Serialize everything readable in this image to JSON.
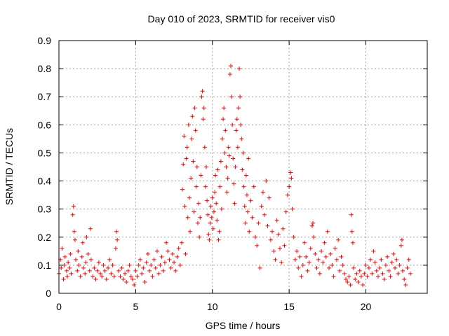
{
  "chart_data": {
    "type": "scatter",
    "title": "Day 010 of 2023, SRMTID for receiver vis0",
    "xlabel": "GPS time / hours",
    "ylabel": "SRMTID / TECUs",
    "xlim": [
      0,
      24
    ],
    "ylim": [
      0,
      0.9
    ],
    "xticks": [
      0,
      5,
      10,
      15,
      20
    ],
    "yticks": [
      0,
      0.1,
      0.2,
      0.3,
      0.4,
      0.5,
      0.6,
      0.7,
      0.8,
      0.9
    ],
    "xtick_labels": [
      "0",
      "5",
      "10",
      "15",
      "20"
    ],
    "ytick_labels": [
      "0",
      "0.1",
      "0.2",
      "0.3",
      "0.4",
      "0.5",
      "0.6",
      "0.7",
      "0.8",
      "0.9"
    ],
    "grid": true,
    "marker": "+",
    "color": "#ff0000",
    "series": [
      {
        "name": "vis0",
        "points": [
          [
            0.0,
            0.07
          ],
          [
            0.1,
            0.12
          ],
          [
            0.15,
            0.09
          ],
          [
            0.2,
            0.16
          ],
          [
            0.3,
            0.05
          ],
          [
            0.35,
            0.1
          ],
          [
            0.4,
            0.13
          ],
          [
            0.5,
            0.08
          ],
          [
            0.55,
            0.06
          ],
          [
            0.6,
            0.11
          ],
          [
            0.7,
            0.09
          ],
          [
            0.75,
            0.14
          ],
          [
            0.8,
            0.07
          ],
          [
            0.9,
            0.28
          ],
          [
            0.95,
            0.31
          ],
          [
            1.0,
            0.22
          ],
          [
            1.05,
            0.19
          ],
          [
            1.1,
            0.12
          ],
          [
            1.2,
            0.08
          ],
          [
            1.25,
            0.15
          ],
          [
            1.3,
            0.1
          ],
          [
            1.4,
            0.06
          ],
          [
            1.5,
            0.13
          ],
          [
            1.55,
            0.18
          ],
          [
            1.6,
            0.09
          ],
          [
            1.7,
            0.07
          ],
          [
            1.75,
            0.11
          ],
          [
            1.8,
            0.2
          ],
          [
            1.9,
            0.14
          ],
          [
            2.0,
            0.08
          ],
          [
            2.05,
            0.23
          ],
          [
            2.1,
            0.12
          ],
          [
            2.2,
            0.06
          ],
          [
            2.3,
            0.09
          ],
          [
            2.4,
            0.05
          ],
          [
            2.5,
            0.08
          ],
          [
            2.6,
            0.11
          ],
          [
            2.7,
            0.07
          ],
          [
            2.8,
            0.06
          ],
          [
            2.9,
            0.1
          ],
          [
            3.0,
            0.08
          ],
          [
            3.1,
            0.05
          ],
          [
            3.2,
            0.09
          ],
          [
            3.3,
            0.12
          ],
          [
            3.4,
            0.07
          ],
          [
            3.5,
            0.1
          ],
          [
            3.6,
            0.06
          ],
          [
            3.7,
            0.16
          ],
          [
            3.75,
            0.22
          ],
          [
            3.8,
            0.19
          ],
          [
            3.9,
            0.08
          ],
          [
            4.0,
            0.06
          ],
          [
            4.1,
            0.09
          ],
          [
            4.2,
            0.05
          ],
          [
            4.3,
            0.07
          ],
          [
            4.4,
            0.04
          ],
          [
            4.5,
            0.08
          ],
          [
            4.6,
            0.1
          ],
          [
            4.7,
            0.06
          ],
          [
            4.8,
            0.05
          ],
          [
            4.9,
            0.03
          ],
          [
            5.0,
            0.08
          ],
          [
            5.1,
            0.06
          ],
          [
            5.2,
            0.1
          ],
          [
            5.3,
            0.12
          ],
          [
            5.4,
            0.07
          ],
          [
            5.5,
            0.09
          ],
          [
            5.6,
            0.04
          ],
          [
            5.7,
            0.11
          ],
          [
            5.8,
            0.14
          ],
          [
            5.9,
            0.08
          ],
          [
            6.0,
            0.1
          ],
          [
            6.1,
            0.06
          ],
          [
            6.2,
            0.12
          ],
          [
            6.3,
            0.09
          ],
          [
            6.4,
            0.15
          ],
          [
            6.5,
            0.07
          ],
          [
            6.6,
            0.1
          ],
          [
            6.7,
            0.13
          ],
          [
            6.8,
            0.08
          ],
          [
            6.9,
            0.11
          ],
          [
            7.0,
            0.18
          ],
          [
            7.1,
            0.15
          ],
          [
            7.2,
            0.12
          ],
          [
            7.3,
            0.09
          ],
          [
            7.4,
            0.14
          ],
          [
            7.5,
            0.11
          ],
          [
            7.6,
            0.08
          ],
          [
            7.7,
            0.13
          ],
          [
            7.8,
            0.16
          ],
          [
            7.9,
            0.1
          ],
          [
            8.0,
            0.18
          ],
          [
            8.05,
            0.37
          ],
          [
            8.1,
            0.46
          ],
          [
            8.15,
            0.56
          ],
          [
            8.2,
            0.31
          ],
          [
            8.25,
            0.14
          ],
          [
            8.3,
            0.48
          ],
          [
            8.35,
            0.52
          ],
          [
            8.4,
            0.27
          ],
          [
            8.45,
            0.6
          ],
          [
            8.5,
            0.34
          ],
          [
            8.55,
            0.22
          ],
          [
            8.6,
            0.41
          ],
          [
            8.65,
            0.55
          ],
          [
            8.7,
            0.63
          ],
          [
            8.75,
            0.47
          ],
          [
            8.8,
            0.29
          ],
          [
            8.85,
            0.66
          ],
          [
            8.9,
            0.58
          ],
          [
            8.95,
            0.38
          ],
          [
            9.0,
            0.45
          ],
          [
            9.05,
            0.25
          ],
          [
            9.1,
            0.32
          ],
          [
            9.15,
            0.2
          ],
          [
            9.2,
            0.27
          ],
          [
            9.25,
            0.42
          ],
          [
            9.3,
            0.7
          ],
          [
            9.35,
            0.72
          ],
          [
            9.4,
            0.62
          ],
          [
            9.45,
            0.66
          ],
          [
            9.5,
            0.52
          ],
          [
            9.55,
            0.38
          ],
          [
            9.6,
            0.45
          ],
          [
            9.65,
            0.33
          ],
          [
            9.7,
            0.28
          ],
          [
            9.75,
            0.21
          ],
          [
            9.8,
            0.19
          ],
          [
            9.85,
            0.25
          ],
          [
            9.9,
            0.31
          ],
          [
            9.95,
            0.27
          ],
          [
            10.0,
            0.34
          ],
          [
            10.05,
            0.23
          ],
          [
            10.1,
            0.29
          ],
          [
            10.15,
            0.36
          ],
          [
            10.2,
            0.42
          ],
          [
            10.25,
            0.32
          ],
          [
            10.3,
            0.26
          ],
          [
            10.35,
            0.44
          ],
          [
            10.4,
            0.19
          ],
          [
            10.45,
            0.22
          ],
          [
            10.5,
            0.38
          ],
          [
            10.55,
            0.47
          ],
          [
            10.6,
            0.3
          ],
          [
            10.65,
            0.55
          ],
          [
            10.7,
            0.62
          ],
          [
            10.75,
            0.66
          ],
          [
            10.8,
            0.5
          ],
          [
            10.85,
            0.58
          ],
          [
            10.9,
            0.45
          ],
          [
            10.95,
            0.36
          ],
          [
            11.0,
            0.41
          ],
          [
            11.05,
            0.52
          ],
          [
            11.1,
            0.49
          ],
          [
            11.15,
            0.78
          ],
          [
            11.2,
            0.81
          ],
          [
            11.25,
            0.7
          ],
          [
            11.3,
            0.6
          ],
          [
            11.35,
            0.48
          ],
          [
            11.4,
            0.39
          ],
          [
            11.45,
            0.32
          ],
          [
            11.5,
            0.45
          ],
          [
            11.55,
            0.58
          ],
          [
            11.6,
            0.62
          ],
          [
            11.65,
            0.52
          ],
          [
            11.7,
            0.66
          ],
          [
            11.75,
            0.8
          ],
          [
            11.8,
            0.7
          ],
          [
            11.85,
            0.6
          ],
          [
            11.9,
            0.55
          ],
          [
            11.95,
            0.44
          ],
          [
            12.0,
            0.5
          ],
          [
            12.05,
            0.38
          ],
          [
            12.1,
            0.31
          ],
          [
            12.15,
            0.25
          ],
          [
            12.2,
            0.42
          ],
          [
            12.25,
            0.35
          ],
          [
            12.3,
            0.29
          ],
          [
            12.35,
            0.48
          ],
          [
            12.4,
            0.22
          ],
          [
            12.5,
            0.33
          ],
          [
            12.6,
            0.27
          ],
          [
            12.7,
            0.38
          ],
          [
            12.8,
            0.2
          ],
          [
            12.9,
            0.17
          ],
          [
            13.0,
            0.25
          ],
          [
            13.1,
            0.09
          ],
          [
            13.2,
            0.31
          ],
          [
            13.3,
            0.36
          ],
          [
            13.4,
            0.28
          ],
          [
            13.5,
            0.4
          ],
          [
            13.6,
            0.24
          ],
          [
            13.7,
            0.34
          ],
          [
            13.8,
            0.19
          ],
          [
            13.9,
            0.22
          ],
          [
            14.0,
            0.15
          ],
          [
            14.1,
            0.12
          ],
          [
            14.2,
            0.26
          ],
          [
            14.3,
            0.21
          ],
          [
            14.4,
            0.16
          ],
          [
            14.5,
            0.11
          ],
          [
            14.6,
            0.23
          ],
          [
            14.7,
            0.17
          ],
          [
            14.8,
            0.29
          ],
          [
            14.9,
            0.35
          ],
          [
            15.0,
            0.38
          ],
          [
            15.1,
            0.43
          ],
          [
            15.15,
            0.41
          ],
          [
            15.2,
            0.3
          ],
          [
            15.3,
            0.2
          ],
          [
            15.4,
            0.12
          ],
          [
            15.5,
            0.15
          ],
          [
            15.6,
            0.09
          ],
          [
            15.7,
            0.13
          ],
          [
            15.8,
            0.06
          ],
          [
            15.9,
            0.1
          ],
          [
            16.0,
            0.18
          ],
          [
            16.1,
            0.13
          ],
          [
            16.2,
            0.08
          ],
          [
            16.3,
            0.11
          ],
          [
            16.4,
            0.16
          ],
          [
            16.5,
            0.24
          ],
          [
            16.55,
            0.25
          ],
          [
            16.6,
            0.2
          ],
          [
            16.7,
            0.14
          ],
          [
            16.8,
            0.09
          ],
          [
            16.9,
            0.12
          ],
          [
            17.0,
            0.07
          ],
          [
            17.1,
            0.15
          ],
          [
            17.2,
            0.11
          ],
          [
            17.3,
            0.18
          ],
          [
            17.4,
            0.13
          ],
          [
            17.5,
            0.22
          ],
          [
            17.6,
            0.09
          ],
          [
            17.7,
            0.14
          ],
          [
            17.8,
            0.1
          ],
          [
            17.9,
            0.06
          ],
          [
            18.0,
            0.16
          ],
          [
            18.1,
            0.12
          ],
          [
            18.2,
            0.19
          ],
          [
            18.3,
            0.08
          ],
          [
            18.4,
            0.13
          ],
          [
            18.5,
            0.1
          ],
          [
            18.6,
            0.07
          ],
          [
            18.7,
            0.05
          ],
          [
            18.8,
            0.04
          ],
          [
            18.9,
            0.06
          ],
          [
            19.0,
            0.03
          ],
          [
            19.05,
            0.28
          ],
          [
            19.1,
            0.22
          ],
          [
            19.15,
            0.18
          ],
          [
            19.2,
            0.09
          ],
          [
            19.3,
            0.05
          ],
          [
            19.4,
            0.07
          ],
          [
            19.5,
            0.04
          ],
          [
            19.6,
            0.08
          ],
          [
            19.7,
            0.06
          ],
          [
            19.8,
            0.03
          ],
          [
            19.9,
            0.07
          ],
          [
            20.0,
            0.1
          ],
          [
            20.1,
            0.06
          ],
          [
            20.2,
            0.09
          ],
          [
            20.3,
            0.12
          ],
          [
            20.4,
            0.07
          ],
          [
            20.5,
            0.15
          ],
          [
            20.6,
            0.11
          ],
          [
            20.7,
            0.08
          ],
          [
            20.8,
            0.06
          ],
          [
            20.9,
            0.09
          ],
          [
            21.0,
            0.12
          ],
          [
            21.1,
            0.07
          ],
          [
            21.2,
            0.05
          ],
          [
            21.3,
            0.1
          ],
          [
            21.4,
            0.13
          ],
          [
            21.5,
            0.08
          ],
          [
            21.6,
            0.06
          ],
          [
            21.7,
            0.11
          ],
          [
            21.8,
            0.14
          ],
          [
            21.9,
            0.09
          ],
          [
            22.0,
            0.12
          ],
          [
            22.1,
            0.07
          ],
          [
            22.2,
            0.1
          ],
          [
            22.3,
            0.17
          ],
          [
            22.35,
            0.19
          ],
          [
            22.4,
            0.08
          ],
          [
            22.5,
            0.05
          ],
          [
            22.6,
            0.03
          ],
          [
            22.7,
            0.09
          ],
          [
            22.8,
            0.12
          ],
          [
            22.9,
            0.07
          ]
        ]
      }
    ]
  }
}
